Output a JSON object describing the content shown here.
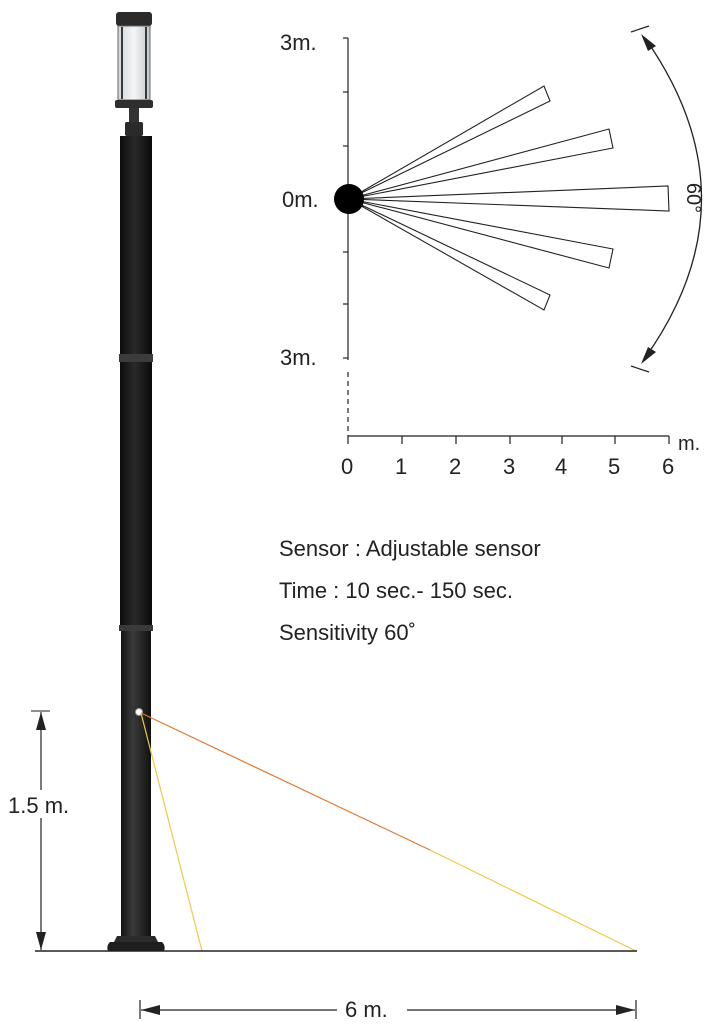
{
  "plan": {
    "y_top_label": "3m.",
    "y_mid_label": "0m.",
    "y_bottom_label": "3m.",
    "x_ticks": [
      "0",
      "1",
      "2",
      "3",
      "4",
      "5",
      "6"
    ],
    "x_unit": "m.",
    "angle_label": "60°"
  },
  "specs": {
    "sensor": "Sensor : Adjustable sensor",
    "time": "Time : 10 sec.- 150 sec.",
    "sensitivity": "Sensitivity 60˚"
  },
  "elevation": {
    "height_label": "1.5 m.",
    "distance_label": "6 m.",
    "near_ray_color": "#f2c744",
    "far_ray_color": "#e07a33"
  }
}
